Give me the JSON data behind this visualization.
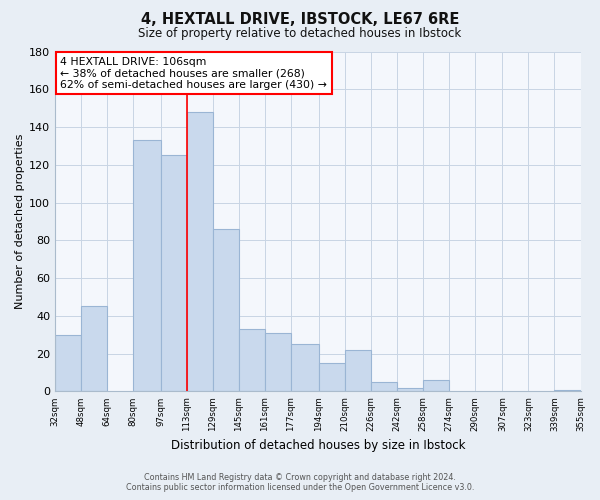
{
  "title": "4, HEXTALL DRIVE, IBSTOCK, LE67 6RE",
  "subtitle": "Size of property relative to detached houses in Ibstock",
  "xlabel": "Distribution of detached houses by size in Ibstock",
  "ylabel": "Number of detached properties",
  "bar_color": "#c9d9ed",
  "bar_edge_color": "#9ab5d4",
  "bins": [
    32,
    48,
    64,
    80,
    97,
    113,
    129,
    145,
    161,
    177,
    194,
    210,
    226,
    242,
    258,
    274,
    290,
    307,
    323,
    339,
    355
  ],
  "counts": [
    30,
    45,
    0,
    133,
    125,
    148,
    86,
    33,
    31,
    25,
    15,
    22,
    5,
    2,
    6,
    0,
    0,
    0,
    0,
    1
  ],
  "tick_labels": [
    "32sqm",
    "48sqm",
    "64sqm",
    "80sqm",
    "97sqm",
    "113sqm",
    "129sqm",
    "145sqm",
    "161sqm",
    "177sqm",
    "194sqm",
    "210sqm",
    "226sqm",
    "242sqm",
    "258sqm",
    "274sqm",
    "290sqm",
    "307sqm",
    "323sqm",
    "339sqm",
    "355sqm"
  ],
  "property_size": 106,
  "property_label": "4 HEXTALL DRIVE: 106sqm",
  "smaller_pct": 38,
  "smaller_count": 268,
  "larger_pct": 62,
  "larger_count": 430,
  "vline_x": 113,
  "ylim": [
    0,
    180
  ],
  "yticks": [
    0,
    20,
    40,
    60,
    80,
    100,
    120,
    140,
    160,
    180
  ],
  "footer_line1": "Contains HM Land Registry data © Crown copyright and database right 2024.",
  "footer_line2": "Contains public sector information licensed under the Open Government Licence v3.0.",
  "bg_color": "#e8eef5",
  "plot_bg_color": "#f4f7fc",
  "grid_color": "#c8d4e4"
}
